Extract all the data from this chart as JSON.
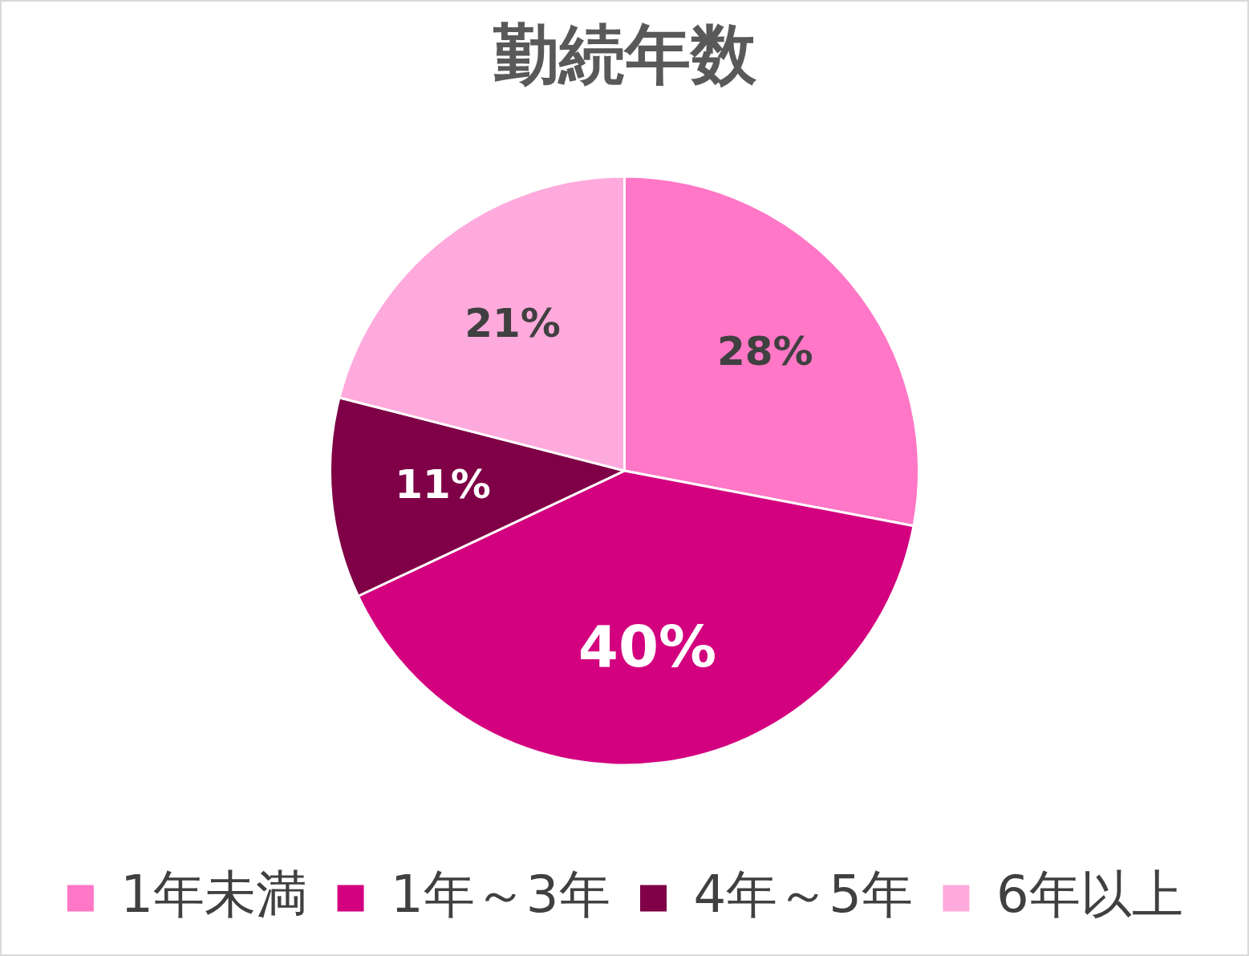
{
  "chart_data": {
    "type": "pie",
    "title": "勤続年数",
    "categories": [
      "1年未満",
      "1年～3年",
      "4年～5年",
      "6年以上"
    ],
    "values": [
      28,
      40,
      11,
      21
    ],
    "colors": [
      "#ff77c6",
      "#d3007f",
      "#7f0046",
      "#ffaadc"
    ],
    "value_labels": [
      "28%",
      "40%",
      "11%",
      "21%"
    ],
    "legend": "bottom"
  }
}
